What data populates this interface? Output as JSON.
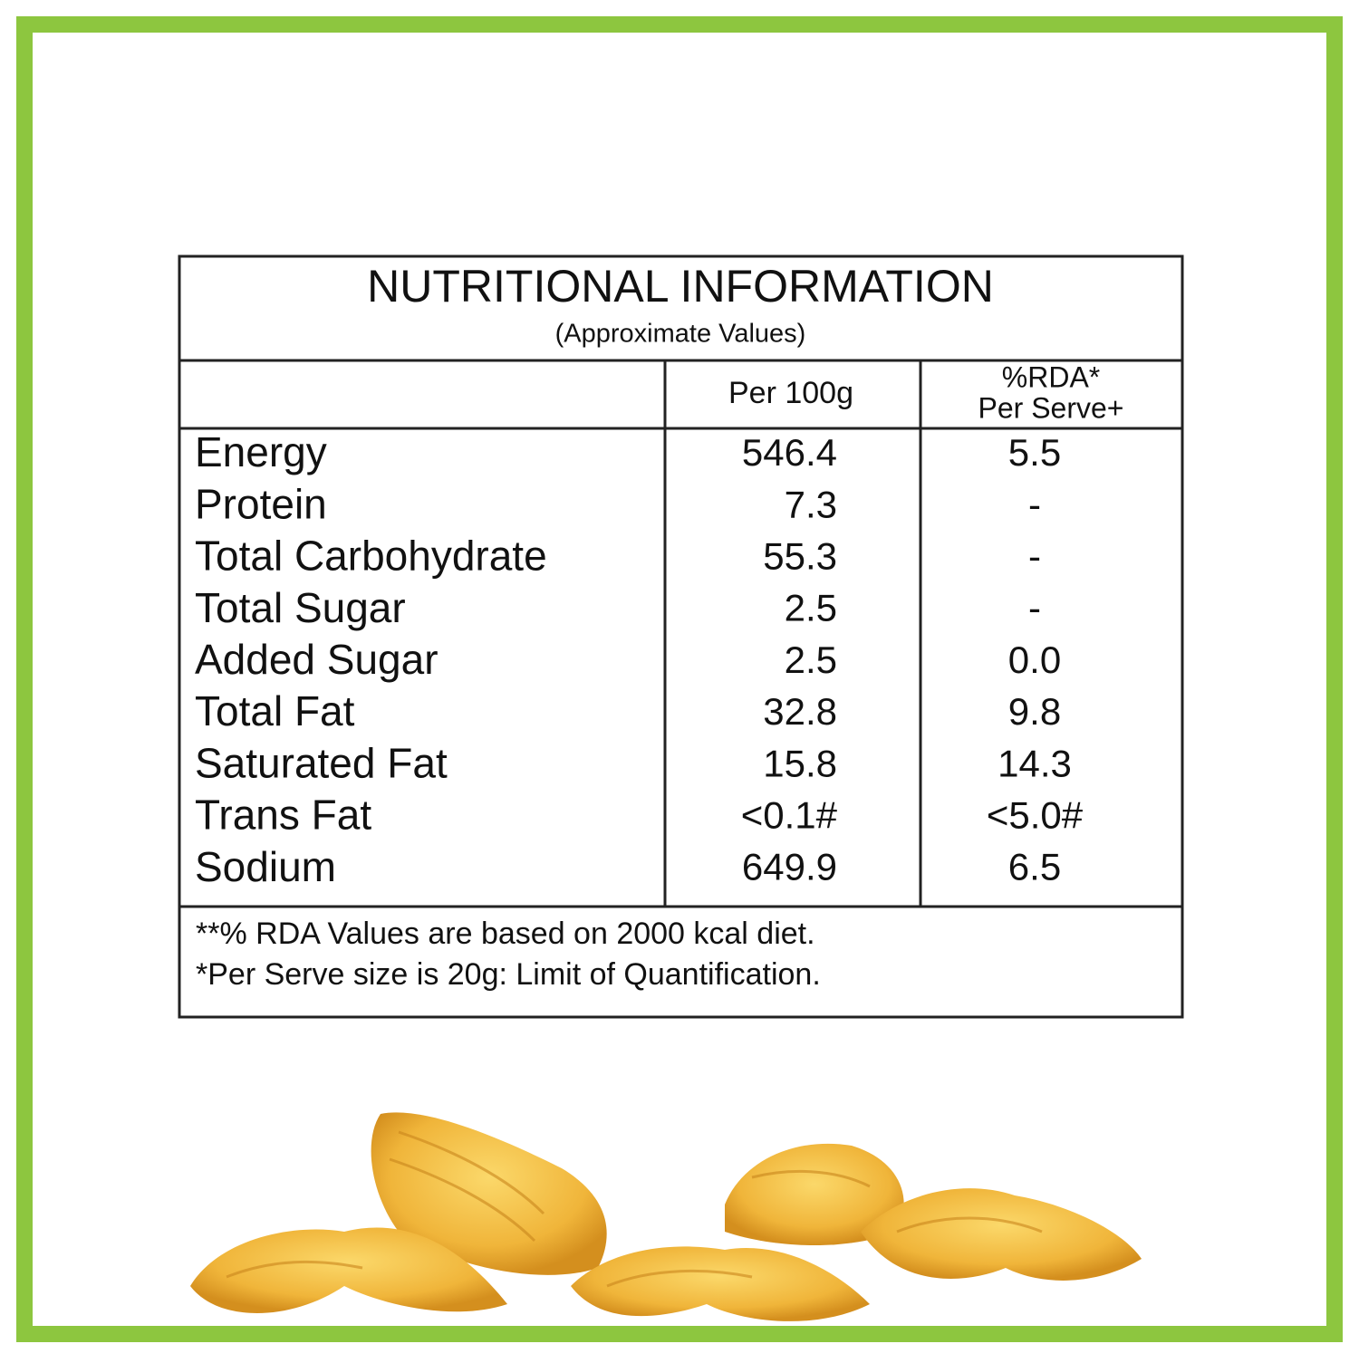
{
  "header": {
    "title": "NUTRITIONAL INFORMATION",
    "subtitle": "(Approximate Values)"
  },
  "table": {
    "columns": [
      "Per 100g",
      "%RDA*",
      "Per Serve+"
    ],
    "rows": [
      [
        "Energy",
        "546.4",
        "5.5"
      ],
      [
        "Protein",
        "7.3",
        "-"
      ],
      [
        "Total Carbohydrate",
        "55.3",
        "-"
      ],
      [
        "Total Sugar",
        "2.5",
        "-"
      ],
      [
        "Added Sugar",
        "2.5",
        "0.0"
      ],
      [
        "Total Fat",
        "32.8",
        "9.8"
      ],
      [
        "Saturated Fat",
        "15.8",
        "14.3"
      ],
      [
        "Trans Fat",
        "<0.1#",
        "<5.0#"
      ],
      [
        "Sodium",
        "649.9",
        "6.5"
      ]
    ]
  },
  "footnotes": [
    "**% RDA Values are based on 2000 kcal diet.",
    "*Per Serve size is 20g: Limit of Quantification."
  ]
}
